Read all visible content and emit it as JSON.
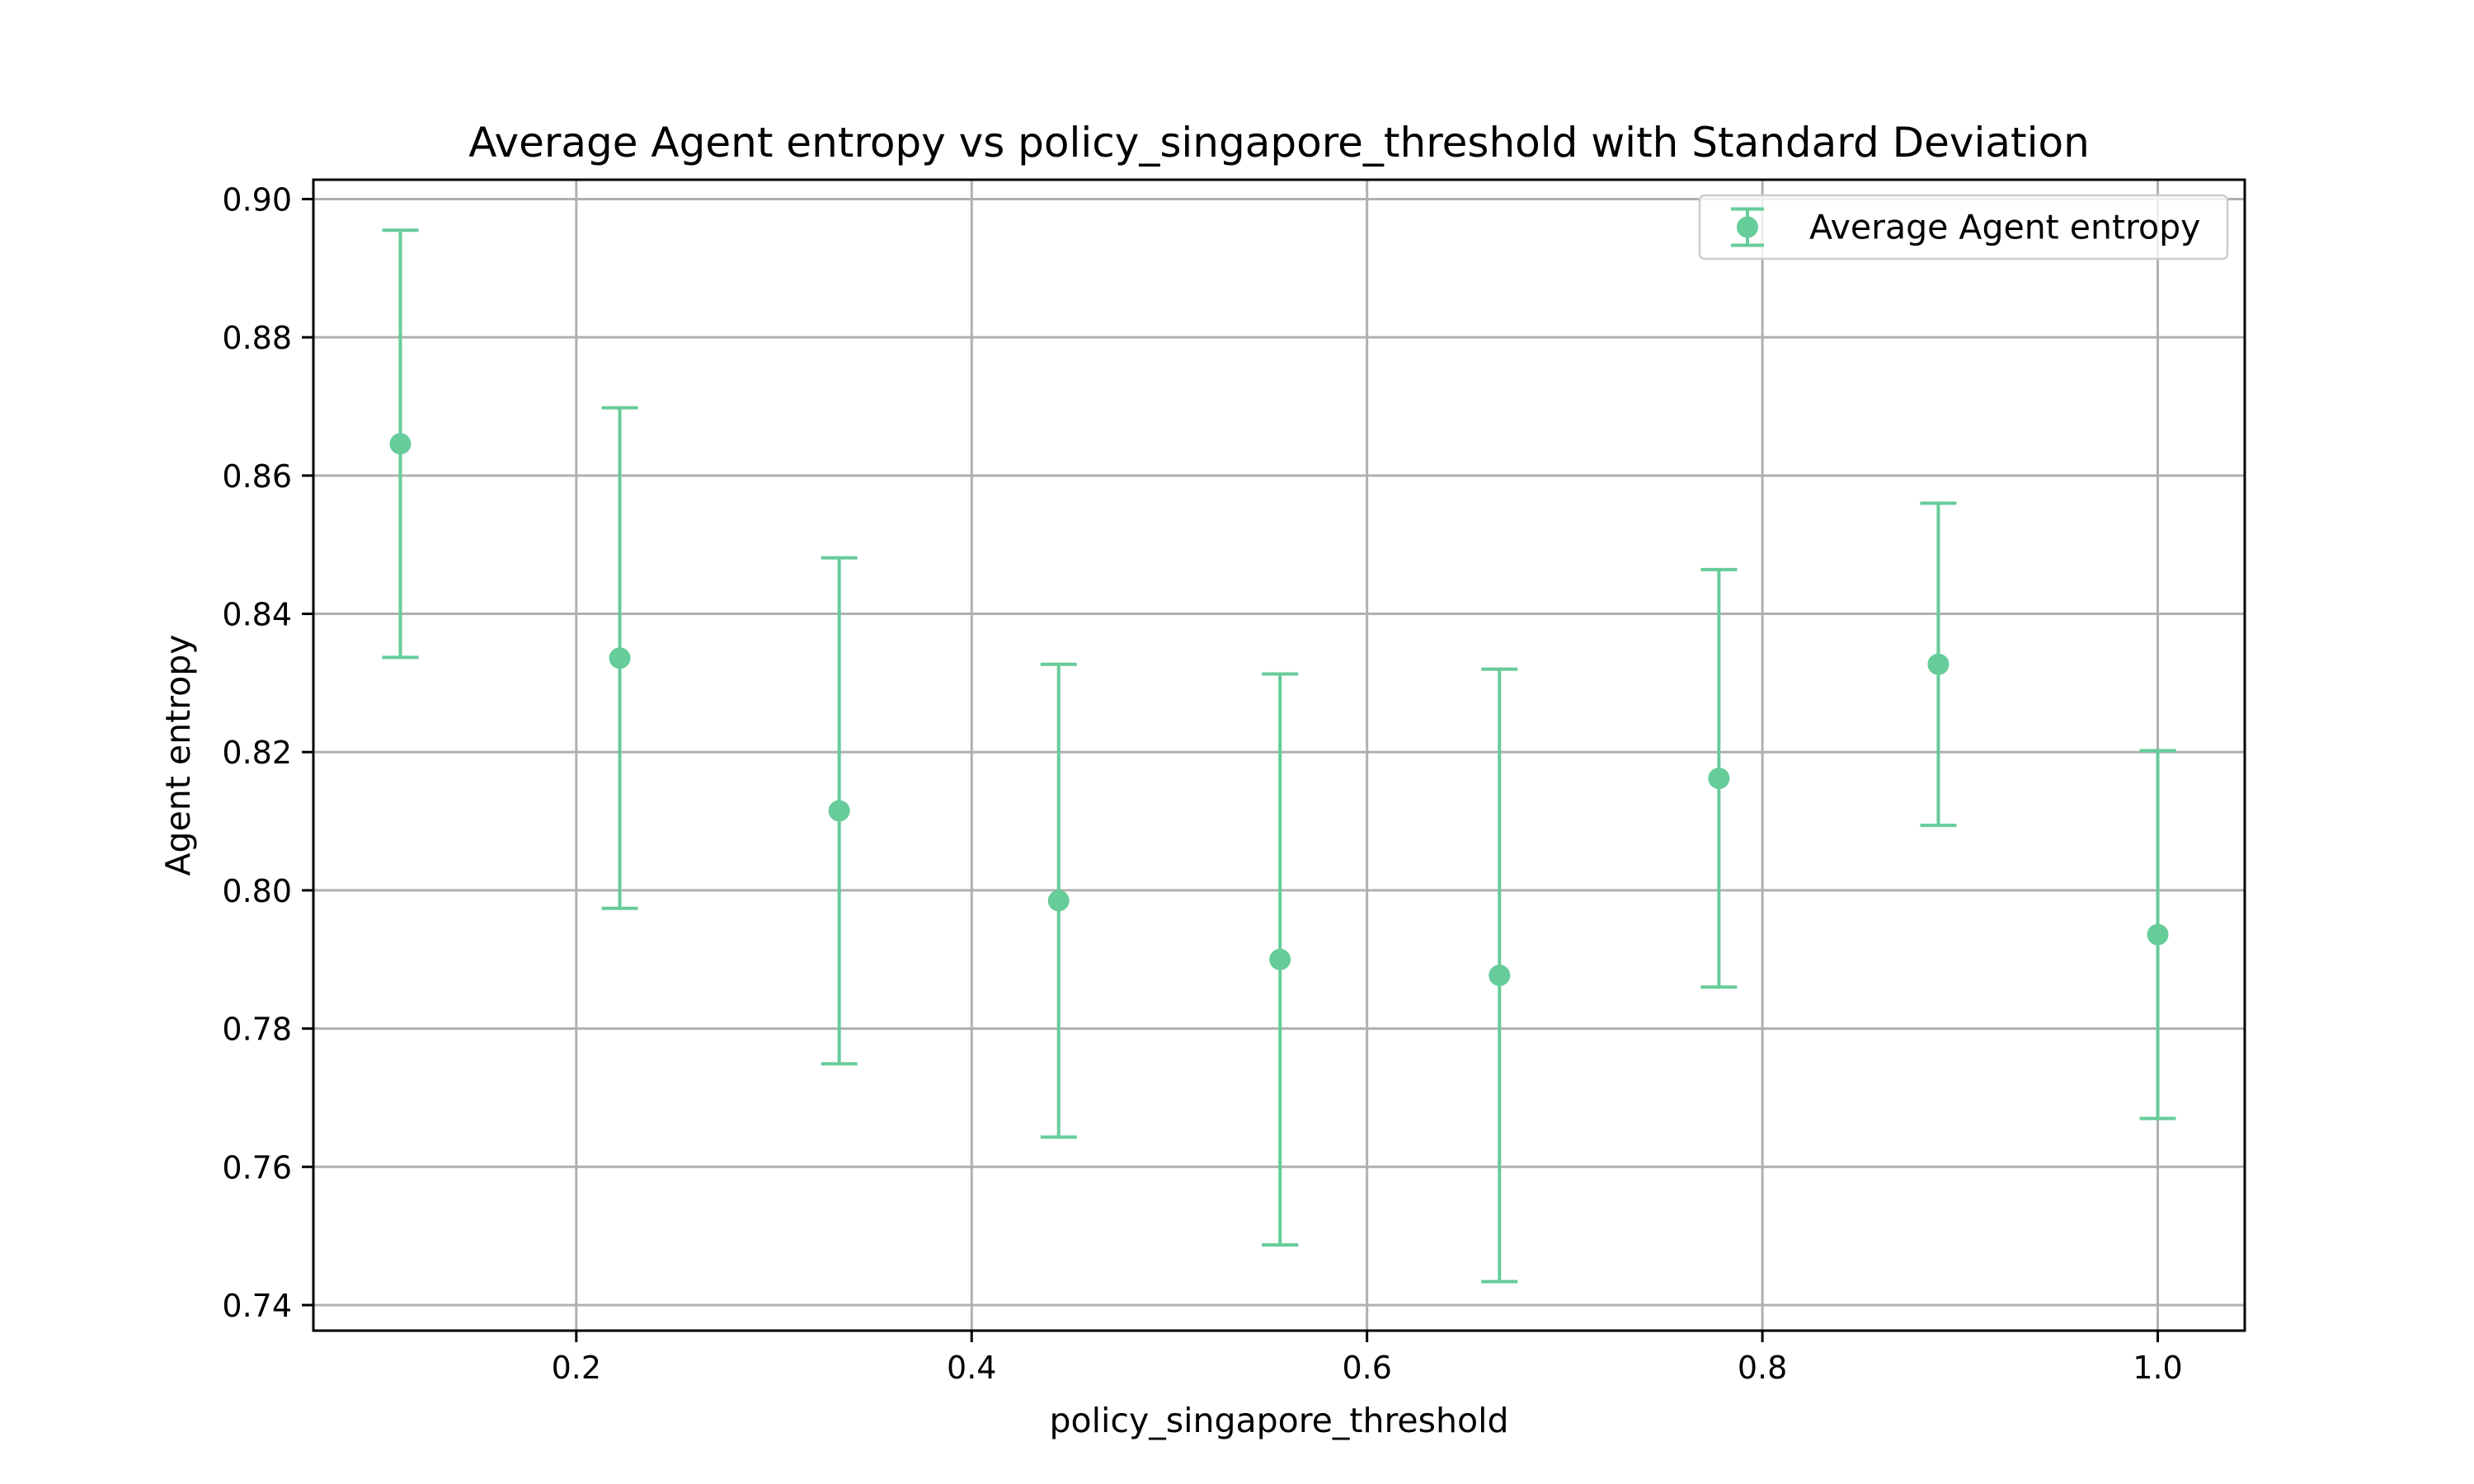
{
  "chart_data": {
    "type": "scatter",
    "title": "Average Agent entropy vs policy_singapore_threshold with Standard Deviation",
    "xlabel": "policy_singapore_threshold",
    "ylabel": "Agent entropy",
    "xlim": [
      0.067,
      1.044
    ],
    "ylim": [
      0.7363,
      0.9028
    ],
    "xticks": [
      0.2,
      0.4,
      0.6,
      0.8,
      1.0
    ],
    "xtick_labels": [
      "0.2",
      "0.4",
      "0.6",
      "0.8",
      "1.0"
    ],
    "yticks": [
      0.74,
      0.76,
      0.78,
      0.8,
      0.82,
      0.84,
      0.86,
      0.88,
      0.9
    ],
    "ytick_labels": [
      "0.74",
      "0.76",
      "0.78",
      "0.80",
      "0.82",
      "0.84",
      "0.86",
      "0.88",
      "0.90"
    ],
    "grid": true,
    "legend_position": "top-right",
    "series": [
      {
        "name": "Average Agent entropy",
        "color": "#66cc99",
        "x": [
          0.111,
          0.222,
          0.333,
          0.444,
          0.556,
          0.667,
          0.778,
          0.889,
          1.0
        ],
        "y": [
          0.8646,
          0.8336,
          0.8115,
          0.7985,
          0.79,
          0.7877,
          0.8162,
          0.8327,
          0.7936
        ],
        "yerr": [
          0.0309,
          0.0362,
          0.0366,
          0.0342,
          0.0413,
          0.0443,
          0.0302,
          0.0233,
          0.0266
        ]
      }
    ]
  }
}
